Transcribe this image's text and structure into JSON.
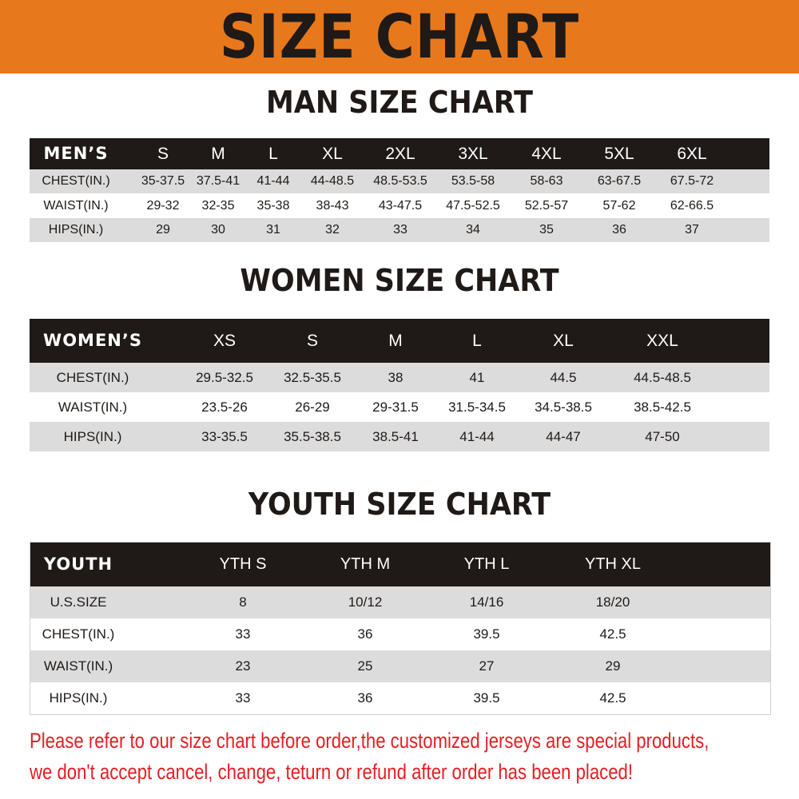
{
  "banner": {
    "title": "SIZE CHART",
    "color": "#e8781c"
  },
  "men": {
    "title": "MAN SIZE CHART",
    "header": [
      "MEN’S",
      "S",
      "M",
      "L",
      "XL",
      "2XL",
      "3XL",
      "4XL",
      "5XL",
      "6XL"
    ],
    "rows": [
      [
        "CHEST(IN.)",
        "35-37.5",
        "37.5-41",
        "41-44",
        "44-48.5",
        "48.5-53.5",
        "53.5-58",
        "58-63",
        "63-67.5",
        "67.5-72"
      ],
      [
        "WAIST(IN.)",
        "29-32",
        "32-35",
        "35-38",
        "38-43",
        "43-47.5",
        "47.5-52.5",
        "52.5-57",
        "57-62",
        "62-66.5"
      ],
      [
        "HIPS(IN.)",
        "29",
        "30",
        "31",
        "32",
        "33",
        "34",
        "35",
        "36",
        "37"
      ]
    ]
  },
  "women": {
    "title": "WOMEN SIZE CHART",
    "header": [
      "WOMEN’S",
      "XS",
      "S",
      "M",
      "L",
      "XL",
      "XXL"
    ],
    "rows": [
      [
        "CHEST(IN.)",
        "29.5-32.5",
        "32.5-35.5",
        "38",
        "41",
        "44.5",
        "44.5-48.5"
      ],
      [
        "WAIST(IN.)",
        "23.5-26",
        "26-29",
        "29-31.5",
        "31.5-34.5",
        "34.5-38.5",
        "38.5-42.5"
      ],
      [
        "HIPS(IN.)",
        "33-35.5",
        "35.5-38.5",
        "38.5-41",
        "41-44",
        "44-47",
        "47-50"
      ]
    ]
  },
  "youth": {
    "title": "YOUTH SIZE CHART",
    "header": [
      "YOUTH",
      "YTH S",
      "YTH M",
      "YTH L",
      "YTH XL"
    ],
    "rows": [
      [
        "U.S.SIZE",
        "8",
        "10/12",
        "14/16",
        "18/20"
      ],
      [
        "CHEST(IN.)",
        "33",
        "36",
        "39.5",
        "42.5"
      ],
      [
        "WAIST(IN.)",
        "23",
        "25",
        "27",
        "29"
      ],
      [
        "HIPS(IN.)",
        "33",
        "36",
        "39.5",
        "42.5"
      ]
    ]
  },
  "notice": {
    "line1": "Please refer to our size chart before order,the customized jerseys are special products,",
    "line2": "we don't accept cancel, change, teturn or refund after order has been placed!",
    "color": "#e31e24"
  }
}
